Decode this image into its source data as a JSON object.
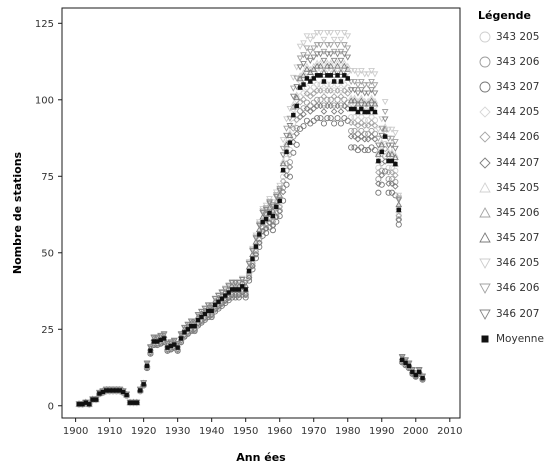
{
  "chart_data": {
    "type": "scatter",
    "title": "",
    "xlabel": "Ann ées",
    "ylabel": "Nombre de stations",
    "xlim": [
      1896,
      2013
    ],
    "ylim": [
      -4,
      130
    ],
    "xticks": [
      1900,
      1910,
      1920,
      1930,
      1940,
      1950,
      1960,
      1970,
      1980,
      1990,
      2000,
      2010
    ],
    "yticks": [
      0,
      25,
      50,
      75,
      100,
      125
    ],
    "grid": false,
    "legend_position": "right",
    "legend_title": "Légende",
    "mean_series": {
      "name": "Moyenne",
      "x": [
        1901,
        1902,
        1903,
        1904,
        1905,
        1906,
        1907,
        1908,
        1909,
        1910,
        1911,
        1912,
        1913,
        1914,
        1915,
        1916,
        1917,
        1918,
        1919,
        1920,
        1921,
        1922,
        1923,
        1924,
        1925,
        1926,
        1927,
        1928,
        1929,
        1930,
        1931,
        1932,
        1933,
        1934,
        1935,
        1936,
        1937,
        1938,
        1939,
        1940,
        1941,
        1942,
        1943,
        1944,
        1945,
        1946,
        1947,
        1948,
        1949,
        1950,
        1951,
        1952,
        1953,
        1954,
        1955,
        1956,
        1957,
        1958,
        1959,
        1960,
        1961,
        1962,
        1963,
        1964,
        1965,
        1966,
        1967,
        1968,
        1969,
        1970,
        1971,
        1972,
        1973,
        1974,
        1975,
        1976,
        1977,
        1978,
        1979,
        1980,
        1981,
        1982,
        1983,
        1984,
        1985,
        1986,
        1987,
        1988,
        1989,
        1990,
        1991,
        1992,
        1993,
        1994,
        1995,
        1996,
        1997,
        1998,
        1999,
        2000,
        2001,
        2002
      ],
      "y": [
        0.5,
        0.5,
        1,
        0.5,
        2,
        2,
        4,
        4.5,
        5,
        5,
        5,
        5,
        5,
        4.5,
        3.5,
        1,
        1,
        1,
        5,
        7,
        13,
        18,
        21,
        21,
        21.5,
        22,
        19,
        19.5,
        20,
        19,
        22,
        24,
        25,
        26,
        26,
        28,
        29,
        30,
        31,
        31,
        33,
        34,
        35,
        36,
        37,
        38,
        38,
        38,
        39,
        38,
        44,
        48,
        52,
        56,
        60,
        61,
        63,
        62,
        65,
        67,
        77,
        83,
        86,
        95,
        98,
        104,
        105,
        107,
        106,
        107,
        108,
        108,
        106,
        108,
        108,
        106,
        108,
        106,
        108,
        107,
        97,
        97,
        96,
        97,
        96,
        96,
        97,
        96,
        80,
        83,
        88,
        80,
        80,
        79,
        64,
        15,
        14,
        13,
        11,
        10,
        11,
        9
      ]
    },
    "stations": [
      {
        "name": "343 205",
        "shape": "circle",
        "color": "#cfcfcf",
        "offset": -3
      },
      {
        "name": "343 206",
        "shape": "circle",
        "color": "#9c9c9c",
        "offset": -8
      },
      {
        "name": "343 207",
        "shape": "circle",
        "color": "#777777",
        "offset": -14
      },
      {
        "name": "344 205",
        "shape": "diamond",
        "color": "#d6d6d6",
        "offset": 2
      },
      {
        "name": "344 206",
        "shape": "diamond",
        "color": "#a6a6a6",
        "offset": -5
      },
      {
        "name": "344 207",
        "shape": "diamond",
        "color": "#7e7e7e",
        "offset": -10
      },
      {
        "name": "345 205",
        "shape": "triangle-up",
        "color": "#d2d2d2",
        "offset": 4
      },
      {
        "name": "345 206",
        "shape": "triangle-up",
        "color": "#a3a3a3",
        "offset": 0
      },
      {
        "name": "345 207",
        "shape": "triangle-up",
        "color": "#7a7a7a",
        "offset": 3
      },
      {
        "name": "346 205",
        "shape": "triangle-down",
        "color": "#cccccc",
        "offset": 14
      },
      {
        "name": "346 206",
        "shape": "triangle-down",
        "color": "#a1a1a1",
        "offset": 10
      },
      {
        "name": "346 207",
        "shape": "triangle-down",
        "color": "#858585",
        "offset": 7
      }
    ]
  }
}
